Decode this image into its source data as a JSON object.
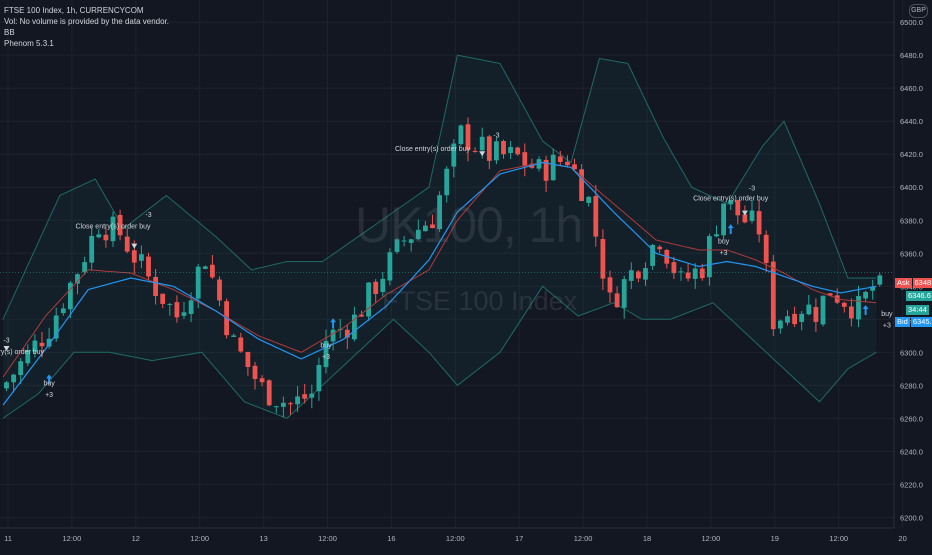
{
  "legend": {
    "title": "FTSE 100 Index, 1h, CURRENCYCOM",
    "vol": "Vol: No volume is provided by the data vendor.",
    "bb": "BB",
    "strategy": "Phenom 5.3.1"
  },
  "currency_badge": "GBP",
  "watermark": {
    "symbol": "UK100, 1h",
    "description": "FTSE 100 Index"
  },
  "price_labels": {
    "ask_tag": "Ask",
    "ask_value": "6348.5",
    "last_value": "6346.6",
    "countdown": "34:44",
    "bid_tag": "Bid",
    "bid_value": "6345.6"
  },
  "colors": {
    "background": "#131722",
    "grid": "#1e222d",
    "up_candle": "#26a69a",
    "down_candle": "#ef5350",
    "bb_band": "#1e6b66",
    "bb_basis": "#b23a3a",
    "ma_line": "#2196f3",
    "ask_label": "#ef5350",
    "bid_label": "#2196f3",
    "signal_arrow": "#2196f3"
  },
  "chart_data": {
    "type": "candlestick",
    "y_axis": {
      "ticks": [
        6500,
        6480,
        6460,
        6440,
        6420,
        6400,
        6380,
        6360,
        6340,
        6320,
        6300,
        6280,
        6260,
        6240,
        6220,
        6200
      ],
      "tick_labels": [
        "6500.0",
        "6480.0",
        "6460.0",
        "6440.0",
        "6420.0",
        "6400.0",
        "6380.0",
        "6360.0",
        "6340.0",
        "6320.0",
        "6300.0",
        "6280.0",
        "6260.0",
        "6240.0",
        "6220.0",
        "6200.0"
      ],
      "range": [
        6196,
        6511
      ]
    },
    "x_axis": {
      "tick_labels": [
        "11",
        "12:00",
        "12",
        "12:00",
        "13",
        "12:00",
        "16",
        "12:00",
        "17",
        "12:00",
        "18",
        "12:00",
        "19",
        "12:00",
        "20",
        "12:00"
      ],
      "tick_bars": [
        0,
        9,
        18,
        27,
        36,
        45,
        54,
        63,
        72,
        81,
        90,
        99,
        108,
        117,
        126,
        135
      ],
      "bar_count": 124
    },
    "close_path": [
      [
        0,
        6282
      ],
      [
        6,
        6315
      ],
      [
        10,
        6350
      ],
      [
        13,
        6378
      ],
      [
        16,
        6372
      ],
      [
        20,
        6345
      ],
      [
        24,
        6322
      ],
      [
        28,
        6358
      ],
      [
        32,
        6305
      ],
      [
        36,
        6278
      ],
      [
        40,
        6268
      ],
      [
        43,
        6275
      ],
      [
        45,
        6308
      ],
      [
        49,
        6320
      ],
      [
        53,
        6348
      ],
      [
        56,
        6368
      ],
      [
        60,
        6382
      ],
      [
        64,
        6432
      ],
      [
        68,
        6420
      ],
      [
        72,
        6418
      ],
      [
        75,
        6410
      ],
      [
        79,
        6418
      ],
      [
        82,
        6392
      ],
      [
        85,
        6330
      ],
      [
        88,
        6348
      ],
      [
        92,
        6370
      ],
      [
        95,
        6342
      ],
      [
        98,
        6352
      ],
      [
        101,
        6392
      ],
      [
        104,
        6380
      ],
      [
        106,
        6375
      ],
      [
        108,
        6320
      ],
      [
        112,
        6328
      ],
      [
        114,
        6325
      ],
      [
        116,
        6338
      ],
      [
        120,
        6326
      ],
      [
        123,
        6346.6
      ]
    ],
    "bb_upper_path": [
      [
        0,
        6320
      ],
      [
        8,
        6395
      ],
      [
        13,
        6405
      ],
      [
        17,
        6375
      ],
      [
        23,
        6395
      ],
      [
        30,
        6370
      ],
      [
        35,
        6350
      ],
      [
        40,
        6355
      ],
      [
        45,
        6355
      ],
      [
        50,
        6370
      ],
      [
        55,
        6385
      ],
      [
        60,
        6400
      ],
      [
        64,
        6480
      ],
      [
        70,
        6475
      ],
      [
        76,
        6428
      ],
      [
        80,
        6415
      ],
      [
        84,
        6478
      ],
      [
        88,
        6475
      ],
      [
        93,
        6430
      ],
      [
        97,
        6400
      ],
      [
        102,
        6390
      ],
      [
        107,
        6425
      ],
      [
        110,
        6440
      ],
      [
        115,
        6390
      ],
      [
        119,
        6345
      ],
      [
        123,
        6345
      ]
    ],
    "bb_lower_path": [
      [
        0,
        6260
      ],
      [
        5,
        6275
      ],
      [
        10,
        6300
      ],
      [
        15,
        6300
      ],
      [
        21,
        6295
      ],
      [
        28,
        6300
      ],
      [
        34,
        6270
      ],
      [
        40,
        6260
      ],
      [
        45,
        6280
      ],
      [
        50,
        6300
      ],
      [
        55,
        6320
      ],
      [
        60,
        6300
      ],
      [
        64,
        6280
      ],
      [
        70,
        6300
      ],
      [
        76,
        6340
      ],
      [
        81,
        6322
      ],
      [
        86,
        6330
      ],
      [
        90,
        6320
      ],
      [
        94,
        6320
      ],
      [
        100,
        6330
      ],
      [
        105,
        6310
      ],
      [
        110,
        6290
      ],
      [
        115,
        6270
      ],
      [
        119,
        6290
      ],
      [
        123,
        6300
      ]
    ],
    "bb_basis_path": [
      [
        0,
        6285
      ],
      [
        6,
        6322
      ],
      [
        12,
        6350
      ],
      [
        18,
        6348
      ],
      [
        24,
        6338
      ],
      [
        30,
        6325
      ],
      [
        36,
        6310
      ],
      [
        42,
        6300
      ],
      [
        48,
        6315
      ],
      [
        54,
        6335
      ],
      [
        60,
        6350
      ],
      [
        64,
        6380
      ],
      [
        70,
        6410
      ],
      [
        76,
        6415
      ],
      [
        80,
        6412
      ],
      [
        86,
        6390
      ],
      [
        92,
        6368
      ],
      [
        98,
        6362
      ],
      [
        102,
        6362
      ],
      [
        106,
        6356
      ],
      [
        110,
        6348
      ],
      [
        114,
        6338
      ],
      [
        118,
        6332
      ],
      [
        123,
        6330
      ]
    ],
    "ma_path": [
      [
        0,
        6268
      ],
      [
        6,
        6302
      ],
      [
        12,
        6338
      ],
      [
        18,
        6345
      ],
      [
        24,
        6340
      ],
      [
        30,
        6325
      ],
      [
        36,
        6308
      ],
      [
        42,
        6296
      ],
      [
        48,
        6308
      ],
      [
        54,
        6328
      ],
      [
        60,
        6356
      ],
      [
        64,
        6385
      ],
      [
        70,
        6408
      ],
      [
        76,
        6415
      ],
      [
        80,
        6412
      ],
      [
        86,
        6385
      ],
      [
        92,
        6360
      ],
      [
        98,
        6352
      ],
      [
        102,
        6355
      ],
      [
        106,
        6352
      ],
      [
        110,
        6346
      ],
      [
        114,
        6340
      ],
      [
        118,
        6336
      ],
      [
        123,
        6340
      ]
    ],
    "price_line": 6348.5,
    "signals": [
      {
        "bar": 0,
        "price": 6302,
        "text": "-3",
        "side": "exit"
      },
      {
        "bar": 6,
        "price": 6283,
        "text": "buy",
        "value": "+3",
        "side": "entry"
      },
      {
        "bar": 18,
        "price": 6364,
        "text": "-3",
        "side": "exit"
      },
      {
        "bar": 46,
        "price": 6317,
        "text": "buy",
        "value": "+3",
        "side": "entry"
      },
      {
        "bar": 67,
        "price": 6420,
        "text": "-3",
        "side": "exit"
      },
      {
        "bar": 102,
        "price": 6374,
        "text": "buy",
        "value": "+3",
        "side": "entry"
      },
      {
        "bar": 104,
        "price": 6384,
        "text": "-3",
        "side": "exit"
      },
      {
        "bar": 121,
        "price": 6325,
        "text": "buy",
        "value": "+3",
        "side": "entry"
      }
    ],
    "annotations": [
      {
        "bar": 0,
        "price": 6306,
        "text": "-3"
      },
      {
        "bar": 0,
        "price": 6299,
        "text": "Close entry(s) order buy"
      },
      {
        "bar": 6,
        "price": 6280,
        "text": "buy"
      },
      {
        "bar": 6,
        "price": 6273,
        "text": "+3"
      },
      {
        "bar": 15,
        "price": 6375,
        "text": "Close entry(s) order buy"
      },
      {
        "bar": 20,
        "price": 6382,
        "text": "-3"
      },
      {
        "bar": 45,
        "price": 6303,
        "text": "buy"
      },
      {
        "bar": 45,
        "price": 6296,
        "text": "+3"
      },
      {
        "bar": 60,
        "price": 6422,
        "text": "Close entry(s) order buy"
      },
      {
        "bar": 69,
        "price": 6430,
        "text": "-3"
      },
      {
        "bar": 101,
        "price": 6366,
        "text": "buy"
      },
      {
        "bar": 101,
        "price": 6359,
        "text": "+3"
      },
      {
        "bar": 102,
        "price": 6392,
        "text": "Close entry(s) order buy"
      },
      {
        "bar": 105,
        "price": 6398,
        "text": "-3"
      },
      {
        "bar": 124,
        "price": 6322,
        "text": "buy"
      },
      {
        "bar": 124,
        "price": 6315,
        "text": "+3"
      }
    ]
  }
}
